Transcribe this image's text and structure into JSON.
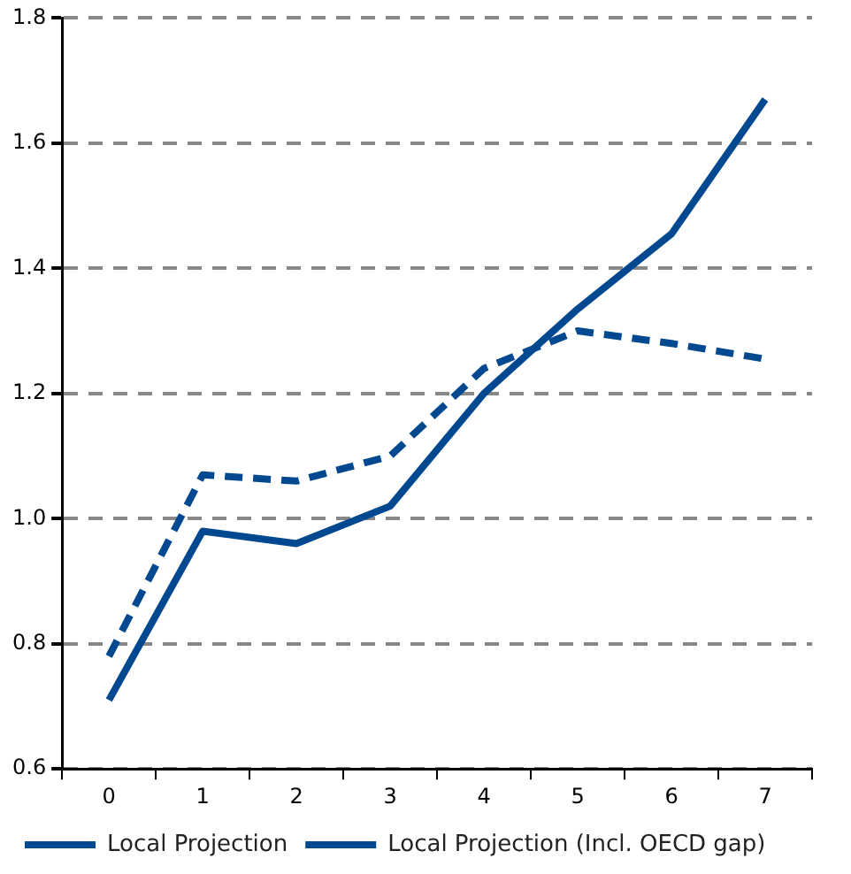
{
  "chart_data": {
    "type": "line",
    "categories": [
      "0",
      "1",
      "2",
      "3",
      "4",
      "5",
      "6",
      "7"
    ],
    "series": [
      {
        "name": "Local Projection",
        "color": "#004990",
        "values": [
          0.71,
          0.98,
          0.96,
          1.02,
          1.2,
          1.335,
          1.455,
          1.67
        ],
        "line_style": "solid"
      },
      {
        "name": "Local Projection (Incl. OECD gap)",
        "color": "#004990",
        "values": [
          0.78,
          1.07,
          1.06,
          1.1,
          1.24,
          1.3,
          1.28,
          1.255
        ],
        "line_style": "dashed"
      }
    ],
    "ylim": [
      0.6,
      1.8
    ],
    "yticks": [
      {
        "value": 0.6,
        "label": "0.6"
      },
      {
        "value": 0.8,
        "label": "0.8"
      },
      {
        "value": 1.0,
        "label": "1.0"
      },
      {
        "value": 1.2,
        "label": "1.2"
      },
      {
        "value": 1.4,
        "label": "1.4"
      },
      {
        "value": 1.6,
        "label": "1.6"
      },
      {
        "value": 1.8,
        "label": "1.8"
      }
    ],
    "grid": "y",
    "legend": "bottom",
    "marker": "none"
  }
}
